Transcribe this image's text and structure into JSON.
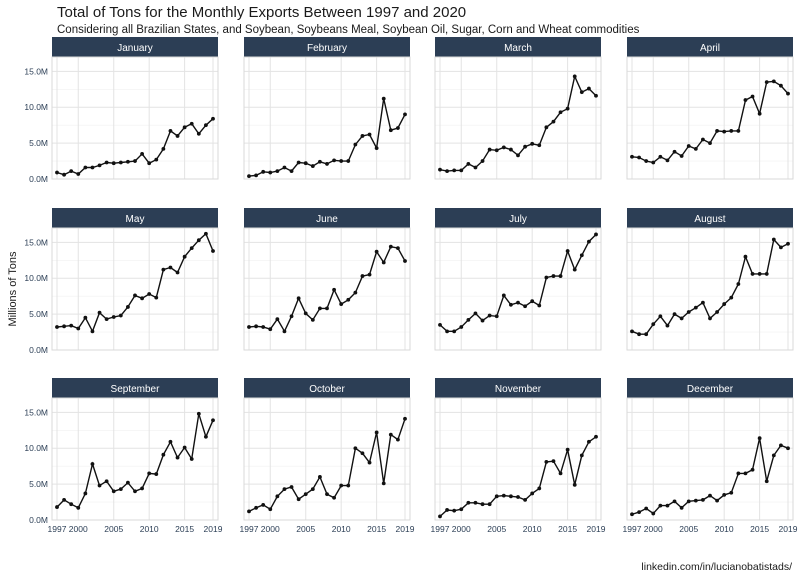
{
  "title": "Total of Tons for the Monthly Exports Between 1997 and 2020",
  "subtitle": "Considering all Brazilian States, and Soybean, Soybeans Meal, Soybean Oil, Sugar, Corn and Wheat commodities",
  "caption": "linkedin.com/in/lucianobatistads/",
  "colors": {
    "strip": "#2c3e55",
    "line": "#111111",
    "grid": "#e3e3e3",
    "panel_border": "#d9d9d9",
    "tick_text": "#2b3e55"
  },
  "chart_data": {
    "type": "line",
    "facets": "month",
    "x_label": "",
    "y_label": "Millions of Tons",
    "x": [
      1997,
      1998,
      1999,
      2000,
      2001,
      2002,
      2003,
      2004,
      2005,
      2006,
      2007,
      2008,
      2009,
      2010,
      2011,
      2012,
      2013,
      2014,
      2015,
      2016,
      2017,
      2018,
      2019
    ],
    "x_ticks": [
      1997,
      2000,
      2005,
      2010,
      2015,
      2019
    ],
    "y_ticks": [
      0,
      5,
      10,
      15
    ],
    "y_tick_labels": [
      "0.0M",
      "5.0M",
      "10.0M",
      "15.0M"
    ],
    "ylim": [
      0,
      17
    ],
    "grid": true,
    "panels": [
      {
        "name": "January",
        "values": [
          0.9,
          0.6,
          1.1,
          0.7,
          1.6,
          1.6,
          1.9,
          2.3,
          2.2,
          2.3,
          2.4,
          2.5,
          3.5,
          2.2,
          2.7,
          4.2,
          6.7,
          6.0,
          7.2,
          7.7,
          6.3,
          7.5,
          8.4
        ]
      },
      {
        "name": "February",
        "values": [
          0.4,
          0.5,
          1.0,
          0.9,
          1.1,
          1.6,
          1.1,
          2.3,
          2.2,
          1.8,
          2.4,
          2.1,
          2.6,
          2.5,
          2.5,
          4.8,
          6.0,
          6.2,
          4.3,
          11.2,
          6.8,
          7.1,
          9.0
        ]
      },
      {
        "name": "March",
        "values": [
          1.3,
          1.1,
          1.2,
          1.2,
          2.1,
          1.6,
          2.5,
          4.1,
          4.0,
          4.4,
          4.1,
          3.3,
          4.5,
          4.9,
          4.7,
          7.2,
          8.0,
          9.3,
          9.8,
          14.3,
          12.1,
          12.6,
          11.6
        ]
      },
      {
        "name": "April",
        "values": [
          3.1,
          3.0,
          2.5,
          2.3,
          3.1,
          2.6,
          3.8,
          3.2,
          4.6,
          4.2,
          5.5,
          5.0,
          6.7,
          6.6,
          6.7,
          6.7,
          11.0,
          11.5,
          9.1,
          13.5,
          13.6,
          13.0,
          11.9
        ]
      },
      {
        "name": "May",
        "values": [
          3.2,
          3.3,
          3.4,
          3.0,
          4.5,
          2.6,
          5.2,
          4.3,
          4.6,
          4.8,
          6.0,
          7.6,
          7.2,
          7.8,
          7.3,
          11.2,
          11.5,
          10.8,
          13.0,
          14.2,
          15.3,
          16.2,
          13.8
        ]
      },
      {
        "name": "June",
        "values": [
          3.2,
          3.3,
          3.2,
          2.9,
          4.3,
          2.6,
          4.7,
          7.2,
          5.1,
          4.2,
          5.8,
          5.8,
          8.4,
          6.4,
          7.0,
          8.0,
          10.3,
          10.5,
          13.7,
          12.2,
          14.4,
          14.2,
          12.4
        ]
      },
      {
        "name": "July",
        "values": [
          3.5,
          2.6,
          2.6,
          3.2,
          4.2,
          5.1,
          4.1,
          4.8,
          4.7,
          7.6,
          6.3,
          6.6,
          6.1,
          6.8,
          6.2,
          10.1,
          10.3,
          10.3,
          13.8,
          11.2,
          13.2,
          15.1,
          16.1
        ]
      },
      {
        "name": "August",
        "values": [
          2.6,
          2.2,
          2.2,
          3.6,
          4.7,
          3.4,
          5.0,
          4.4,
          5.3,
          5.9,
          6.6,
          4.4,
          5.3,
          6.4,
          7.3,
          9.2,
          13.0,
          10.6,
          10.6,
          10.6,
          15.4,
          14.3,
          14.8
        ]
      },
      {
        "name": "September",
        "values": [
          1.8,
          2.8,
          2.2,
          1.7,
          3.7,
          7.8,
          4.8,
          5.4,
          4.0,
          4.3,
          5.2,
          4.0,
          4.4,
          6.5,
          6.4,
          9.1,
          10.9,
          8.7,
          10.1,
          8.5,
          14.8,
          11.6,
          13.9
        ]
      },
      {
        "name": "October",
        "values": [
          1.2,
          1.7,
          2.1,
          1.5,
          3.3,
          4.3,
          4.6,
          2.9,
          3.6,
          4.3,
          6.0,
          3.6,
          3.1,
          4.8,
          4.8,
          10.0,
          9.3,
          8.0,
          12.2,
          5.1,
          11.9,
          11.2,
          14.1
        ]
      },
      {
        "name": "November",
        "values": [
          0.5,
          1.4,
          1.3,
          1.5,
          2.4,
          2.4,
          2.2,
          2.2,
          3.3,
          3.4,
          3.3,
          3.2,
          2.8,
          3.7,
          4.4,
          8.1,
          8.2,
          6.5,
          9.8,
          4.9,
          9.0,
          10.9,
          11.6
        ]
      },
      {
        "name": "December",
        "values": [
          0.8,
          1.1,
          1.6,
          0.9,
          2.0,
          2.0,
          2.6,
          1.7,
          2.6,
          2.7,
          2.8,
          3.4,
          2.7,
          3.5,
          3.8,
          6.5,
          6.5,
          7.0,
          11.4,
          5.4,
          9.0,
          10.4,
          10.0
        ]
      }
    ]
  }
}
